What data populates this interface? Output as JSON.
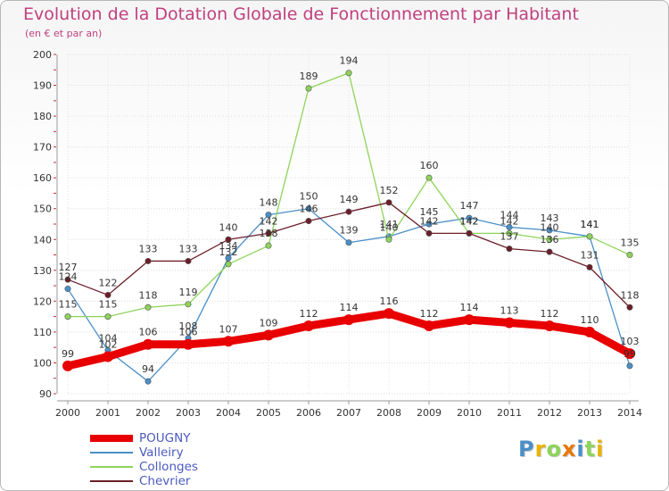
{
  "chart_data": {
    "type": "line",
    "title": "Evolution de la Dotation Globale de Fonctionnement par Habitant",
    "subtitle": "(en € et par an)",
    "xlabel": "",
    "ylabel": "",
    "ylim": [
      90,
      200
    ],
    "yticks": [
      90,
      100,
      110,
      120,
      130,
      140,
      150,
      160,
      170,
      180,
      190,
      200
    ],
    "categories": [
      "2000",
      "2001",
      "2002",
      "2003",
      "2004",
      "2005",
      "2006",
      "2007",
      "2008",
      "2009",
      "2010",
      "2011",
      "2012",
      "2013",
      "2014"
    ],
    "series": [
      {
        "name": "Valleiry",
        "color": "#4a8fc8",
        "values": [
          124,
          104,
          94,
          108,
          134,
          148,
          150,
          139,
          141,
          145,
          147,
          144,
          143,
          141,
          99
        ]
      },
      {
        "name": "Collonges",
        "color": "#8dd45a",
        "values": [
          115,
          115,
          118,
          119,
          132,
          138,
          189,
          194,
          140,
          160,
          142,
          142,
          140,
          141,
          135
        ]
      },
      {
        "name": "Chevrier",
        "color": "#6b1e28",
        "values": [
          127,
          122,
          133,
          133,
          140,
          142,
          146,
          149,
          152,
          142,
          142,
          137,
          136,
          131,
          118
        ]
      },
      {
        "name": "POUGNY",
        "color": "#e80000",
        "values": [
          99,
          102,
          106,
          106,
          107,
          109,
          112,
          114,
          116,
          112,
          114,
          113,
          112,
          110,
          103
        ]
      }
    ],
    "legend_order": [
      "POUGNY",
      "Valleiry",
      "Collonges",
      "Chevrier"
    ],
    "legend_position": "bottom-left"
  },
  "logo": {
    "letters": [
      "P",
      "r",
      "o",
      "x",
      "i",
      "t",
      "i"
    ],
    "colors": [
      "#4a8fc8",
      "#e8b400",
      "#8dd45a",
      "#e87800",
      "#4a8fc8",
      "#8dd45a",
      "#e8b400"
    ]
  }
}
